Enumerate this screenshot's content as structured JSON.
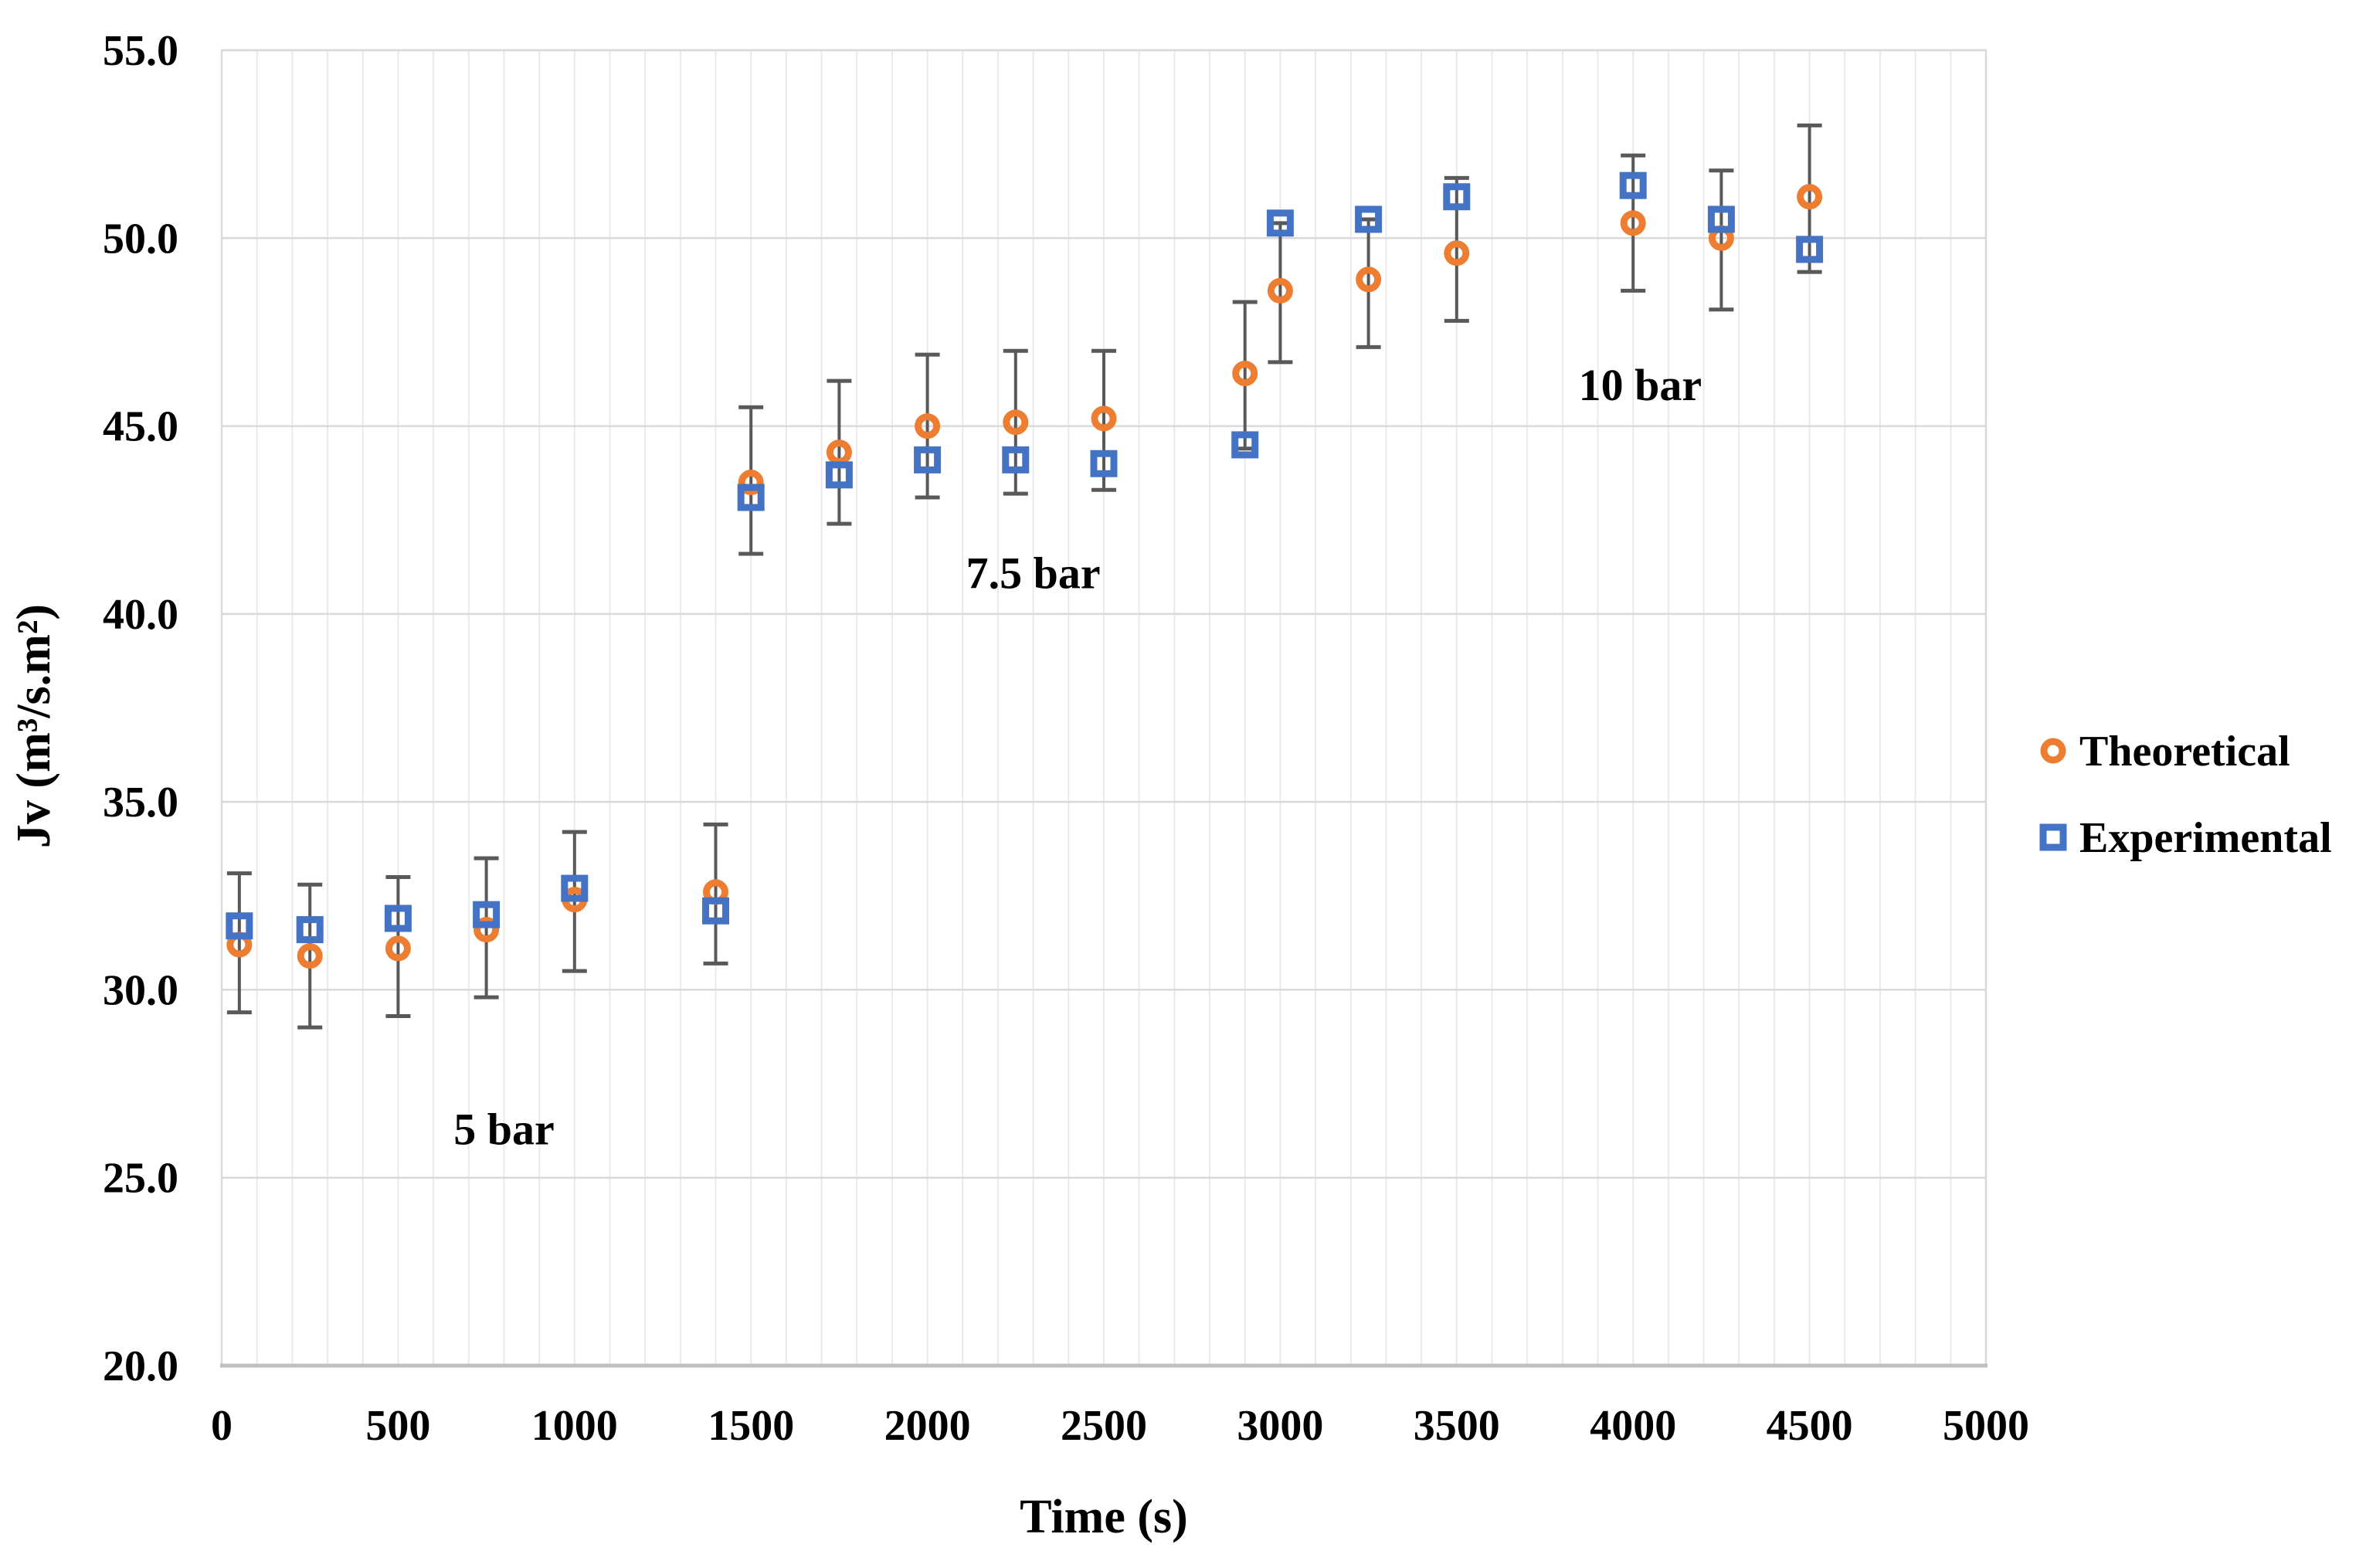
{
  "figure": {
    "background": "#FFFFFF"
  },
  "chart_data": {
    "type": "scatter",
    "title": "",
    "xlabel": "Time (s)",
    "ylabel": "Jv (m³/s.m²)",
    "xlim": [
      0,
      5000
    ],
    "ylim": [
      20.0,
      55.0
    ],
    "x_ticks": [
      0,
      500,
      1000,
      1500,
      2000,
      2500,
      3000,
      3500,
      4000,
      4500,
      5000
    ],
    "y_ticks": [
      20.0,
      25.0,
      30.0,
      35.0,
      40.0,
      45.0,
      50.0,
      55.0
    ],
    "x_minor_gridline_step": 100,
    "grid": {
      "horizontal_major": true,
      "vertical_minor": true
    },
    "legend_position": "right",
    "series": [
      {
        "name": "Theoretical",
        "marker": "circle",
        "color": "#ED7D31",
        "x": [
          50,
          250,
          500,
          750,
          1000,
          1400,
          1500,
          1750,
          2000,
          2250,
          2500,
          2900,
          3000,
          3250,
          3500,
          4000,
          4250,
          4500
        ],
        "y": [
          31.2,
          30.9,
          31.1,
          31.6,
          32.4,
          32.6,
          43.5,
          44.3,
          45.0,
          45.1,
          45.2,
          46.4,
          48.6,
          48.9,
          49.6,
          50.4,
          50.0,
          51.1
        ]
      },
      {
        "name": "Experimental",
        "marker": "square",
        "color": "#4472C4",
        "x": [
          50,
          250,
          500,
          750,
          1000,
          1400,
          1500,
          1750,
          2000,
          2250,
          2500,
          2900,
          3000,
          3250,
          3500,
          4000,
          4250,
          4500
        ],
        "y": [
          31.7,
          31.6,
          31.9,
          32.0,
          32.7,
          32.1,
          43.1,
          43.7,
          44.1,
          44.1,
          44.0,
          44.5,
          50.4,
          50.5,
          51.1,
          51.4,
          50.5,
          49.7
        ]
      }
    ],
    "error_bars": {
      "color": "#595959",
      "x": [
        50,
        250,
        500,
        750,
        1000,
        1400,
        1500,
        1750,
        2000,
        2250,
        2500,
        2900,
        3000,
        3250,
        3500,
        4000,
        4250,
        4500
      ],
      "low": [
        29.4,
        29.0,
        29.3,
        29.8,
        30.5,
        30.7,
        41.6,
        42.4,
        43.1,
        43.2,
        43.3,
        44.4,
        46.7,
        47.1,
        47.8,
        48.6,
        48.1,
        49.1
      ],
      "high": [
        33.1,
        32.8,
        33.0,
        33.5,
        34.2,
        34.4,
        45.5,
        46.2,
        46.9,
        47.0,
        47.0,
        48.3,
        50.4,
        50.5,
        51.6,
        52.2,
        51.8,
        53.0
      ]
    },
    "annotations": [
      {
        "text": "5 bar",
        "x": 800,
        "y": 26.3
      },
      {
        "text": "7.5 bar",
        "x": 2300,
        "y": 41.1
      },
      {
        "text": "10 bar",
        "x": 4020,
        "y": 46.1
      }
    ]
  },
  "colors": {
    "theoretical": "#ED7D31",
    "experimental": "#4472C4",
    "error_bar": "#595959",
    "major_gridline": "#D9D9D9",
    "minor_gridline": "#E9E9E9",
    "axis_line": "#BFBFBF",
    "text": "#000000",
    "background": "#FFFFFF"
  }
}
